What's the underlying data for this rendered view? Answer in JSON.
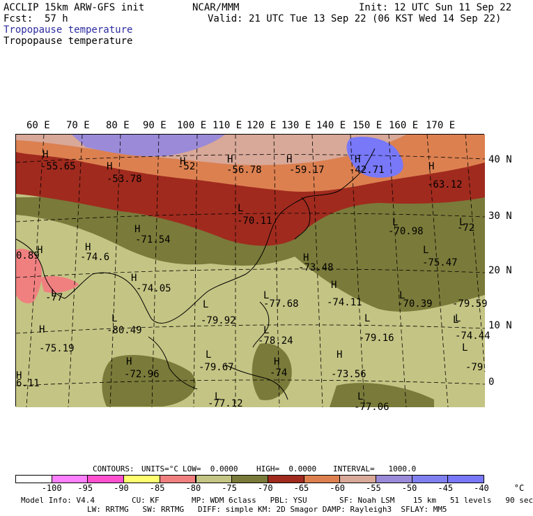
{
  "header": {
    "model": "ACCLIP 15km ARW-GFS init",
    "center": "NCAR/MMM",
    "init": "Init: 12 UTC Sun 11 Sep 22",
    "fcst_label": "Fcst:",
    "fcst_value": "57 h",
    "valid": "Valid: 21 UTC Tue 13 Sep 22 (06 KST Wed 14 Sep 22)",
    "field_title_1": "Tropopause temperature",
    "field_title_2": "Tropopause temperature"
  },
  "map": {
    "longitude_labels": [
      "60 E",
      "70 E",
      "80 E",
      "90 E",
      "100 E",
      "110 E",
      "120 E",
      "130 E",
      "140 E",
      "150 E",
      "160 E",
      "170 E"
    ],
    "latitude_labels": [
      "40 N",
      "30 N",
      "20 N",
      "10 N",
      "0"
    ],
    "pressure_labels": [
      {
        "marker": "H",
        "value": "-55.65"
      },
      {
        "marker": "H",
        "value": "-53.78"
      },
      {
        "marker": "H",
        "value": "-52"
      },
      {
        "marker": "H",
        "value": "-56.78"
      },
      {
        "marker": "H",
        "value": "-59.17"
      },
      {
        "marker": "H",
        "value": "-42.71"
      },
      {
        "marker": "H",
        "value": "-63.12"
      },
      {
        "marker": "L",
        "value": "-70.11"
      },
      {
        "marker": "H",
        "value": "-71.54"
      },
      {
        "marker": "H",
        "value": "-74.6"
      },
      {
        "marker": "L",
        "value": "-70.98"
      },
      {
        "marker": "L",
        "value": "-72"
      },
      {
        "marker": "L",
        "value": "-75.47"
      },
      {
        "marker": "H",
        "value": "-73.48"
      },
      {
        "marker": "H",
        "value": "0.89"
      },
      {
        "marker": "H",
        "value": "-74.05"
      },
      {
        "marker": "L",
        "value": "-77"
      },
      {
        "marker": "L",
        "value": "-77.68"
      },
      {
        "marker": "H",
        "value": "-74.11"
      },
      {
        "marker": "L",
        "value": "-70.39"
      },
      {
        "marker": "L",
        "value": "-79.59"
      },
      {
        "marker": "L",
        "value": "-79.92"
      },
      {
        "marker": "L",
        "value": "-80.49"
      },
      {
        "marker": "L",
        "value": "-74.44"
      },
      {
        "marker": "H",
        "value": "-75.19"
      },
      {
        "marker": "L",
        "value": "-78.24"
      },
      {
        "marker": "L",
        "value": "-79.16"
      },
      {
        "marker": "L",
        "value": "-79.67"
      },
      {
        "marker": "L",
        "value": "-79"
      },
      {
        "marker": "H",
        "value": "-73.56"
      },
      {
        "marker": "H",
        "value": "-72.96"
      },
      {
        "marker": "H",
        "value": "-74"
      },
      {
        "marker": "H",
        "value": "6.11"
      },
      {
        "marker": "L",
        "value": "-77.12"
      },
      {
        "marker": "L",
        "value": "-77.06"
      }
    ]
  },
  "contour_info": {
    "contours": "CONTOURS:",
    "units": "UNITS=°C",
    "low": "LOW=  0.0000",
    "high": "HIGH=  0.0000",
    "interval": "INTERVAL=   1000.0"
  },
  "colorbar": {
    "colors": [
      "#ffffff",
      "#ff80ff",
      "#ff50d0",
      "#ffff70",
      "#f08080",
      "#c4c484",
      "#7a7a3a",
      "#a02a1e",
      "#dc8050",
      "#d8a898",
      "#9a8ad8",
      "#8080f0",
      "#7878f8"
    ],
    "ticks": [
      "-100",
      "-95",
      "-90",
      "-85",
      "-80",
      "-75",
      "-70",
      "-65",
      "-60",
      "-55",
      "-50",
      "-45",
      "-40",
      "°C"
    ]
  },
  "footer": {
    "line1": "Model Info: V4.4        CU: KF       MP: WDM 6class   PBL: YSU       SF: Noah LSM    15 km   51 levels   90 sec",
    "line2": "LW: RRTMG   SW: RRTMG   DIFF: simple KM: 2D Smagor DAMP: Rayleigh3  SFLAY: MM5"
  }
}
